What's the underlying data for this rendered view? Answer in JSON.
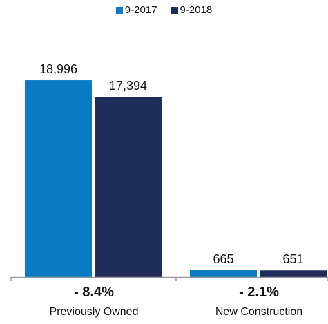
{
  "chart_data": {
    "type": "bar",
    "categories": [
      "Previously Owned",
      "New Construction"
    ],
    "category_changes": [
      "- 8.4%",
      "- 2.1%"
    ],
    "series": [
      {
        "name": "9-2017",
        "values": [
          18996,
          665
        ],
        "labels": [
          "18,996",
          "665"
        ],
        "color": "#0a7bc2"
      },
      {
        "name": "9-2018",
        "values": [
          17394,
          651
        ],
        "labels": [
          "17,394",
          "651"
        ],
        "color": "#1f2d5a"
      }
    ],
    "ylim": [
      0,
      21000
    ],
    "grid": false,
    "legend_position": "top-center"
  }
}
